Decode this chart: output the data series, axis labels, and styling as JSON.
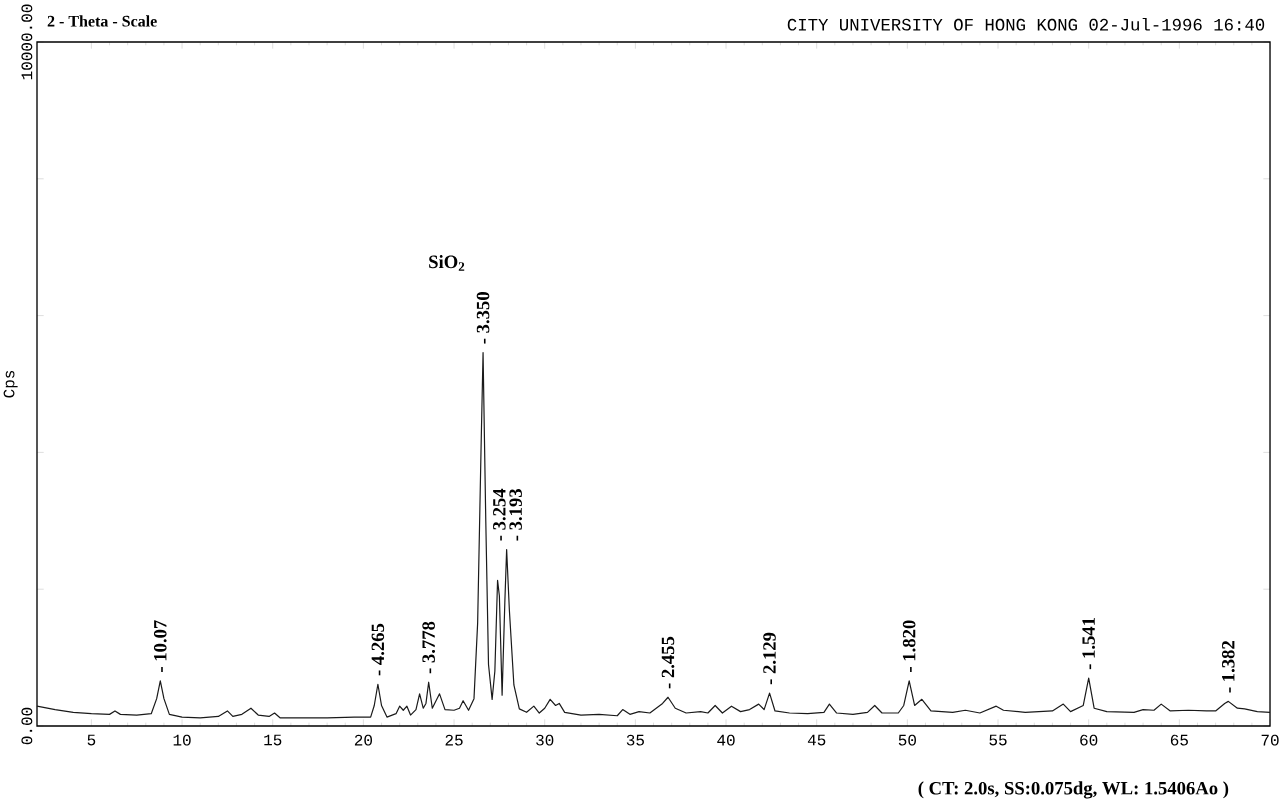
{
  "chart_data": {
    "type": "line",
    "xlabel": "2 - Theta - Scale",
    "subtitle": "CITY UNIVERSITY OF HONG KONG 02-Jul-1996 16:40",
    "ylabel": "Cps",
    "color": "#1a1a1a",
    "x": [
      2,
      3,
      4,
      5,
      6,
      6.3,
      6.6,
      7.5,
      8.3,
      8.6,
      8.8,
      9.0,
      9.3,
      10,
      11,
      12,
      12.5,
      12.8,
      13.3,
      13.8,
      14.2,
      14.8,
      15.1,
      15.4,
      16.5,
      18,
      19.5,
      20.4,
      20.6,
      20.8,
      21.0,
      21.3,
      21.8,
      22.0,
      22.2,
      22.4,
      22.6,
      22.9,
      23.1,
      23.3,
      23.45,
      23.6,
      23.8,
      24.2,
      24.5,
      25.0,
      25.3,
      25.5,
      25.8,
      26.1,
      26.3,
      26.5,
      26.6,
      26.75,
      26.9,
      27.1,
      27.25,
      27.4,
      27.5,
      27.65,
      27.8,
      27.9,
      28.05,
      28.3,
      28.6,
      29.0,
      29.4,
      29.7,
      30.0,
      30.3,
      30.6,
      30.8,
      31.1,
      32,
      33,
      34,
      34.3,
      34.7,
      35.2,
      35.8,
      36.5,
      36.8,
      37.2,
      37.8,
      38.6,
      39.0,
      39.4,
      39.8,
      40.3,
      40.8,
      41.3,
      41.8,
      42.1,
      42.4,
      42.7,
      43.5,
      44.5,
      45.4,
      45.7,
      46.1,
      47.0,
      47.8,
      48.2,
      48.6,
      49.5,
      49.8,
      50.1,
      50.4,
      50.8,
      51.3,
      52.5,
      53.2,
      54,
      54.9,
      55.3,
      56.5,
      58.0,
      58.6,
      59.0,
      59.7,
      60.0,
      60.3,
      61,
      62.5,
      63,
      63.6,
      64,
      64.5,
      65.5,
      66.5,
      67.0,
      67.5,
      67.7,
      68.2,
      68.6,
      69.3,
      70
    ],
    "values": [
      290,
      240,
      200,
      180,
      170,
      220,
      170,
      160,
      180,
      400,
      660,
      400,
      170,
      130,
      120,
      140,
      220,
      140,
      170,
      260,
      160,
      140,
      190,
      120,
      120,
      120,
      130,
      130,
      300,
      610,
      300,
      130,
      180,
      290,
      230,
      290,
      160,
      240,
      470,
      260,
      330,
      640,
      260,
      470,
      240,
      230,
      260,
      370,
      230,
      400,
      1500,
      4200,
      5460,
      3000,
      900,
      390,
      800,
      2130,
      1900,
      450,
      1800,
      2580,
      1700,
      600,
      250,
      200,
      290,
      190,
      260,
      390,
      300,
      330,
      200,
      160,
      170,
      150,
      240,
      170,
      210,
      190,
      330,
      420,
      260,
      190,
      210,
      190,
      300,
      190,
      290,
      210,
      240,
      320,
      240,
      480,
      220,
      190,
      180,
      200,
      320,
      190,
      170,
      200,
      300,
      190,
      190,
      300,
      660,
      300,
      390,
      220,
      200,
      230,
      190,
      290,
      230,
      200,
      220,
      320,
      210,
      300,
      700,
      260,
      210,
      200,
      240,
      230,
      320,
      220,
      230,
      220,
      220,
      330,
      360,
      260,
      250,
      210,
      200
    ],
    "xlim": [
      2,
      70
    ],
    "xticks": [
      5,
      10,
      15,
      20,
      25,
      30,
      35,
      40,
      45,
      50,
      55,
      60,
      65,
      70
    ],
    "ylim": [
      0,
      10000
    ],
    "yticks": [
      {
        "value": 0,
        "label": "0.00"
      },
      {
        "value": 2000,
        "label": null
      },
      {
        "value": 4000,
        "label": null
      },
      {
        "value": 6000,
        "label": null
      },
      {
        "value": 8000,
        "label": null
      },
      {
        "value": 10000,
        "label": "10000.00"
      }
    ],
    "annotations": [
      "( CT: 2.0s,  SS:0.075dg,  WL: 1.5406Ao )",
      {
        "text": "- 10.07",
        "x": 8.8,
        "y": 660
      },
      {
        "text": "- 4.265",
        "x": 20.8,
        "y": 610
      },
      {
        "text": "- 3.778",
        "x": 23.6,
        "y": 640
      },
      {
        "text": "- 3.350",
        "x": 26.6,
        "y": 5460
      },
      "SiO$_{2}$",
      {
        "text": "- 3.254",
        "x": 27.4,
        "y": 2130
      },
      {
        "text": "- 3.193",
        "x": 27.9,
        "y": 2580
      },
      {
        "text": "- 2.455",
        "x": 36.8,
        "y": 420
      },
      {
        "text": "- 2.129",
        "x": 42.4,
        "y": 480
      },
      {
        "text": "- 1.820",
        "x": 50.1,
        "y": 660
      },
      {
        "text": "- 1.541",
        "x": 60.0,
        "y": 700
      },
      {
        "text": "- 1.382",
        "x": 67.7,
        "y": 360
      }
    ]
  }
}
